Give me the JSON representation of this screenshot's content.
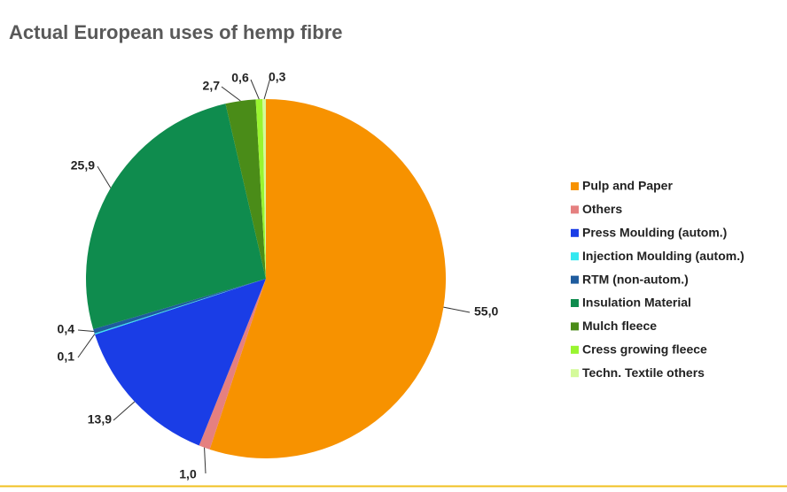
{
  "chart_data": {
    "type": "pie",
    "title": "Actual European uses of hemp fibre",
    "categories": [
      "Pulp and Paper",
      "Others",
      "Press Moulding (autom.)",
      "Injection Moulding (autom.)",
      "RTM (non-autom.)",
      "Insulation Material",
      "Mulch fleece",
      "Cress growing fleece",
      "Techn. Textile others"
    ],
    "values": [
      55.0,
      1.0,
      13.9,
      0.1,
      0.4,
      25.9,
      2.7,
      0.6,
      0.3
    ],
    "value_labels": [
      "55,0",
      "1,0",
      "13,9",
      "0,1",
      "0,4",
      "25,9",
      "2,7",
      "0,6",
      "0,3"
    ],
    "colors": [
      "#f79200",
      "#e58080",
      "#1a3de6",
      "#33e8f0",
      "#1f5c9e",
      "#0f8c4e",
      "#4a8c18",
      "#99f530",
      "#d4fa9a"
    ],
    "legend": "right"
  }
}
